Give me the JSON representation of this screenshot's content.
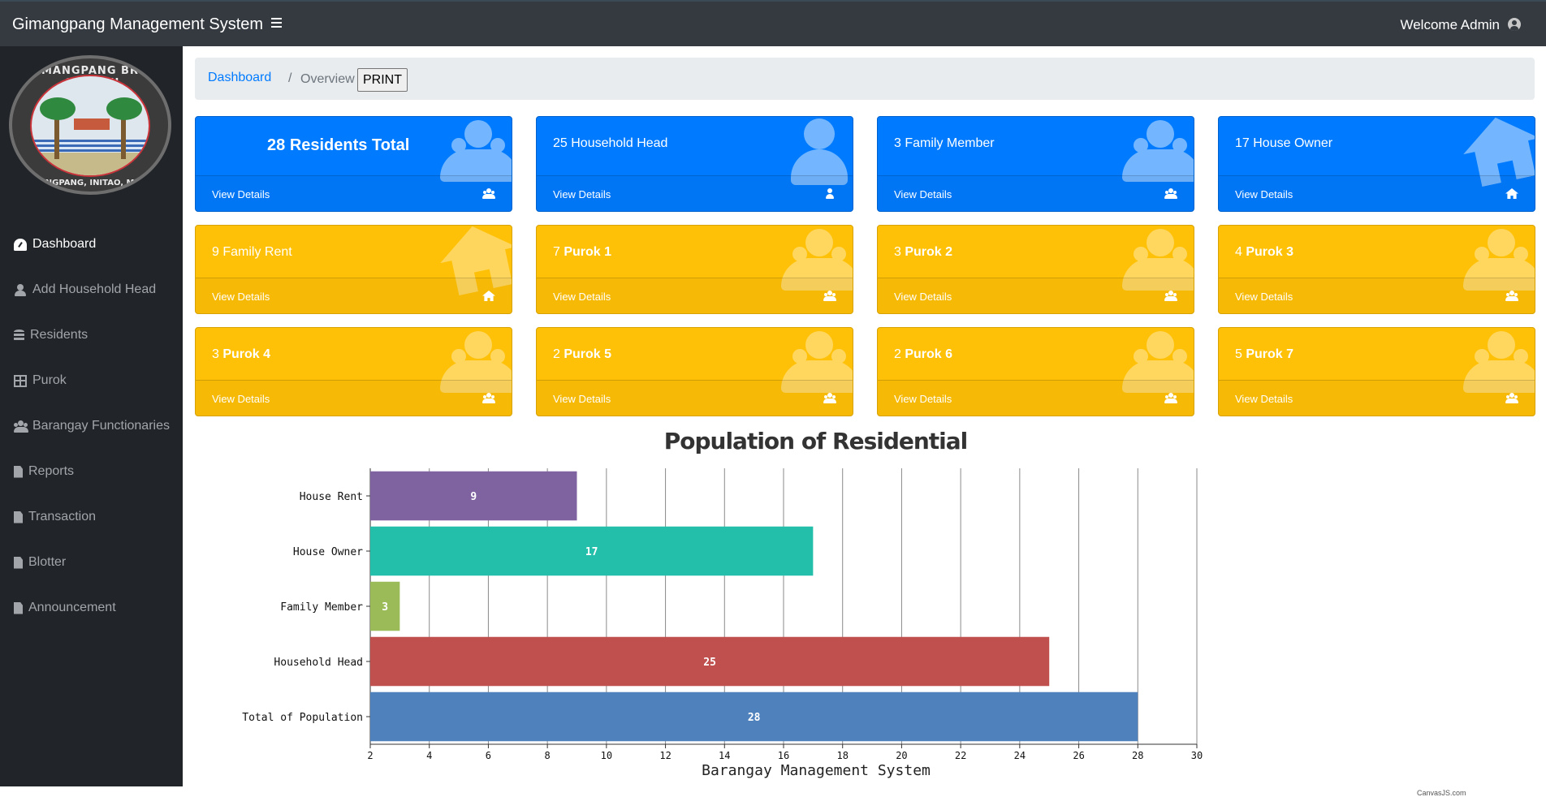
{
  "topbar": {
    "brand": "Gimangpang Management System",
    "welcome": "Welcome Admin"
  },
  "logo": {
    "text_top": "GIMANGPANG BRGY. COUNCIL",
    "text_bottom": "GIMANGPANG, INITAO, MIS. OR."
  },
  "sidebar": {
    "items": [
      {
        "label": "Dashboard",
        "icon": "dashboard-icon",
        "active": true
      },
      {
        "label": "Add Household Head",
        "icon": "user-icon"
      },
      {
        "label": "Residents",
        "icon": "database-icon"
      },
      {
        "label": "Purok",
        "icon": "table-icon"
      },
      {
        "label": "Barangay Functionaries",
        "icon": "users-icon"
      },
      {
        "label": "Reports",
        "icon": "file-icon"
      },
      {
        "label": "Transaction",
        "icon": "file-icon"
      },
      {
        "label": "Blotter",
        "icon": "file-icon"
      },
      {
        "label": "Announcement",
        "icon": "file-icon"
      }
    ]
  },
  "breadcrumb": {
    "dashboard": "Dashboard",
    "separator": "/",
    "overview": "Overview",
    "print": "PRINT"
  },
  "cards": [
    {
      "number": "28",
      "label": "Residents Total",
      "icon": "users-icon"
    },
    {
      "number": "25",
      "label": "Household Head",
      "icon": "user-icon"
    },
    {
      "number": "3",
      "label": "Family Member",
      "icon": "users-icon"
    },
    {
      "number": "17",
      "label": "House Owner",
      "icon": "home-icon"
    },
    {
      "number": "9",
      "label": "Family Rent",
      "icon": "home-icon"
    },
    {
      "number": "7",
      "label": "Purok 1",
      "icon": "users-icon"
    },
    {
      "number": "3",
      "label": "Purok 2",
      "icon": "users-icon"
    },
    {
      "number": "4",
      "label": "Purok 3",
      "icon": "users-icon"
    },
    {
      "number": "3",
      "label": "Purok 4",
      "icon": "users-icon"
    },
    {
      "number": "2",
      "label": "Purok 5",
      "icon": "users-icon"
    },
    {
      "number": "2",
      "label": "Purok 6",
      "icon": "users-icon"
    },
    {
      "number": "5",
      "label": "Purok 7",
      "icon": "users-icon"
    }
  ],
  "card_link": "View Details",
  "colors": {
    "blue": "#007bff",
    "yellow": "#ffc107",
    "sidebar": "#212529",
    "topbar": "#343a40"
  },
  "chart_data": {
    "type": "bar",
    "orientation": "horizontal",
    "title": "Population of Residential",
    "xlabel": "Barangay Management System",
    "categories": [
      "House Rent",
      "House Owner",
      "Family Member",
      "Household Head",
      "Total of Population"
    ],
    "values": [
      9,
      17,
      3,
      25,
      28
    ],
    "colors": [
      "#7f63a1",
      "#23bfaa",
      "#9bbb59",
      "#c0504e",
      "#4f81bc"
    ],
    "xlim": [
      2,
      30
    ],
    "ticks": [
      2,
      4,
      6,
      8,
      10,
      12,
      14,
      16,
      18,
      20,
      22,
      24,
      26,
      28,
      30
    ],
    "grid": true,
    "credit": "CanvasJS.com"
  }
}
